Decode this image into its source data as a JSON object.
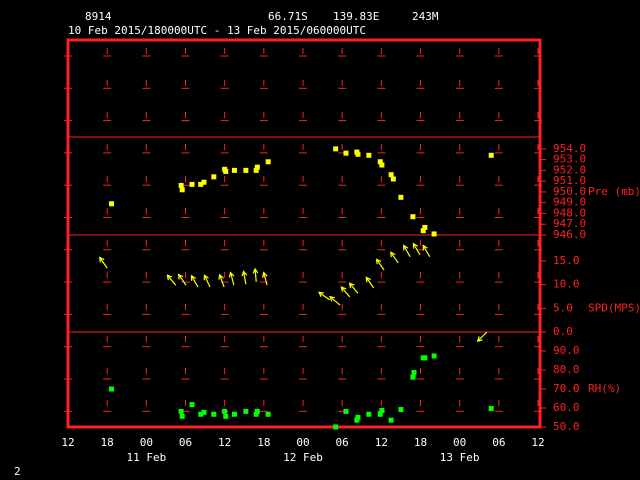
{
  "header": {
    "station": "8914",
    "latitude": "66.71S",
    "longitude": "139.83E",
    "elevation": "243M",
    "period": "10 Feb 2015/180000UTC - 13 Feb 2015/060000UTC",
    "page": "2"
  },
  "time_axis": {
    "xlim": [
      "2015-02-10T12:00Z",
      "2015-02-13T12:00Z"
    ],
    "xticks": [
      {
        "value": "2015-02-10T12:00Z",
        "label": "12"
      },
      {
        "value": "2015-02-10T18:00Z",
        "label": "18"
      },
      {
        "value": "2015-02-11T00:00Z",
        "label": "00"
      },
      {
        "value": "2015-02-11T06:00Z",
        "label": "06"
      },
      {
        "value": "2015-02-11T12:00Z",
        "label": "12"
      },
      {
        "value": "2015-02-11T18:00Z",
        "label": "18"
      },
      {
        "value": "2015-02-12T00:00Z",
        "label": "00"
      },
      {
        "value": "2015-02-12T06:00Z",
        "label": "06"
      },
      {
        "value": "2015-02-12T12:00Z",
        "label": "12"
      },
      {
        "value": "2015-02-12T18:00Z",
        "label": "18"
      },
      {
        "value": "2015-02-13T00:00Z",
        "label": "00"
      },
      {
        "value": "2015-02-13T06:00Z",
        "label": "06"
      },
      {
        "value": "2015-02-13T12:00Z",
        "label": "12"
      }
    ],
    "days": [
      {
        "value": "2015-02-11T00:00Z",
        "label": "11 Feb"
      },
      {
        "value": "2015-02-12T00:00Z",
        "label": "12 Feb"
      },
      {
        "value": "2015-02-13T00:00Z",
        "label": "13 Feb"
      }
    ]
  },
  "chart_data": [
    {
      "type": "scatter",
      "label": "Pre (mb)",
      "color": "#ffff00",
      "x": [
        "2015-02-10T18:40Z",
        "2015-02-11T05:20Z",
        "2015-02-11T05:30Z",
        "2015-02-11T07:00Z",
        "2015-02-11T08:20Z",
        "2015-02-11T08:50Z",
        "2015-02-11T10:20Z",
        "2015-02-11T12:00Z",
        "2015-02-11T12:10Z",
        "2015-02-11T13:30Z",
        "2015-02-11T15:15Z",
        "2015-02-11T16:50Z",
        "2015-02-11T17:00Z",
        "2015-02-11T18:40Z",
        "2015-02-12T05:00Z",
        "2015-02-12T06:35Z",
        "2015-02-12T08:15Z",
        "2015-02-12T08:25Z",
        "2015-02-12T10:05Z",
        "2015-02-12T11:50Z",
        "2015-02-12T12:05Z",
        "2015-02-12T13:30Z",
        "2015-02-12T13:50Z",
        "2015-02-12T15:00Z",
        "2015-02-12T16:50Z",
        "2015-02-12T18:25Z",
        "2015-02-12T18:40Z",
        "2015-02-12T20:05Z",
        "2015-02-13T04:50Z"
      ],
      "values": [
        948.9,
        950.6,
        950.2,
        950.7,
        950.7,
        950.9,
        951.4,
        952.1,
        951.9,
        952.0,
        952.0,
        952.0,
        952.3,
        952.8,
        954.0,
        953.6,
        953.7,
        953.5,
        953.4,
        952.8,
        952.5,
        951.6,
        951.2,
        949.5,
        947.7,
        946.4,
        946.7,
        946.1,
        953.4
      ],
      "ylim": [
        946,
        955.1
      ],
      "yticks": [
        {
          "value": 954,
          "label": "954.0"
        },
        {
          "value": 953,
          "label": "953.0"
        },
        {
          "value": 952,
          "label": "952.0"
        },
        {
          "value": 951,
          "label": "951.0"
        },
        {
          "value": 950,
          "label": "950.0"
        },
        {
          "value": 949,
          "label": "949.0"
        },
        {
          "value": 948,
          "label": "948.0"
        },
        {
          "value": 947,
          "label": "947.0"
        },
        {
          "value": 946,
          "label": "946.0"
        }
      ]
    },
    {
      "type": "vector",
      "label": "SPD(MPS)",
      "color": "#ffff00",
      "x": [
        "2015-02-10T18:00Z",
        "2015-02-11T04:30Z",
        "2015-02-11T06:05Z",
        "2015-02-11T07:55Z",
        "2015-02-11T09:45Z",
        "2015-02-11T11:55Z",
        "2015-02-11T13:25Z",
        "2015-02-11T15:15Z",
        "2015-02-11T16:50Z",
        "2015-02-11T18:30Z",
        "2015-02-12T04:05Z",
        "2015-02-12T05:40Z",
        "2015-02-12T07:10Z",
        "2015-02-12T08:25Z",
        "2015-02-12T10:50Z",
        "2015-02-12T12:25Z",
        "2015-02-12T14:35Z",
        "2015-02-12T16:25Z",
        "2015-02-12T17:55Z",
        "2015-02-12T19:25Z",
        "2015-02-13T04:10Z"
      ],
      "values": [
        13.5,
        9.9,
        9.9,
        9.5,
        9.5,
        9.5,
        9.9,
        10.1,
        10.6,
        9.9,
        6.8,
        5.7,
        7.4,
        8.2,
        9.3,
        13.1,
        14.6,
        15.9,
        16.3,
        15.9,
        0
      ],
      "directions": [
        145,
        140,
        145,
        150,
        155,
        160,
        165,
        170,
        175,
        165,
        125,
        130,
        140,
        140,
        145,
        145,
        145,
        150,
        150,
        150,
        45
      ],
      "ylim": [
        0,
        20.5
      ],
      "yticks": [
        {
          "value": 15,
          "label": "15.0"
        },
        {
          "value": 10,
          "label": "10.0"
        },
        {
          "value": 5,
          "label": "5.0"
        },
        {
          "value": 0,
          "label": "0.0"
        }
      ]
    },
    {
      "type": "scatter",
      "label": "RH(%)",
      "color": "#00ff00",
      "x": [
        "2015-02-10T18:40Z",
        "2015-02-11T05:20Z",
        "2015-02-11T05:30Z",
        "2015-02-11T07:00Z",
        "2015-02-11T08:20Z",
        "2015-02-11T08:50Z",
        "2015-02-11T10:20Z",
        "2015-02-11T12:00Z",
        "2015-02-11T12:10Z",
        "2015-02-11T13:30Z",
        "2015-02-11T15:15Z",
        "2015-02-11T16:50Z",
        "2015-02-11T17:00Z",
        "2015-02-11T18:40Z",
        "2015-02-12T05:00Z",
        "2015-02-12T06:35Z",
        "2015-02-12T08:15Z",
        "2015-02-12T08:25Z",
        "2015-02-12T10:05Z",
        "2015-02-12T11:50Z",
        "2015-02-12T12:05Z",
        "2015-02-12T13:30Z",
        "2015-02-12T15:00Z",
        "2015-02-12T16:50Z",
        "2015-02-12T17:00Z",
        "2015-02-12T18:25Z",
        "2015-02-12T18:40Z",
        "2015-02-12T20:05Z",
        "2015-02-13T04:50Z"
      ],
      "values": [
        70.0,
        58.2,
        55.6,
        61.8,
        56.7,
        57.7,
        56.7,
        58.2,
        55.6,
        56.7,
        58.2,
        56.7,
        58.2,
        56.7,
        50.0,
        58.2,
        53.6,
        55.1,
        56.7,
        56.7,
        58.7,
        53.6,
        59.2,
        76.2,
        78.7,
        86.4,
        86.4,
        87.4,
        59.7
      ],
      "ylim": [
        50,
        100
      ],
      "yticks": [
        {
          "value": 90,
          "label": "90.0"
        },
        {
          "value": 80,
          "label": "80.0"
        },
        {
          "value": 70,
          "label": "70.0"
        },
        {
          "value": 60,
          "label": "60.0"
        },
        {
          "value": 50,
          "label": "50.0"
        }
      ]
    }
  ]
}
